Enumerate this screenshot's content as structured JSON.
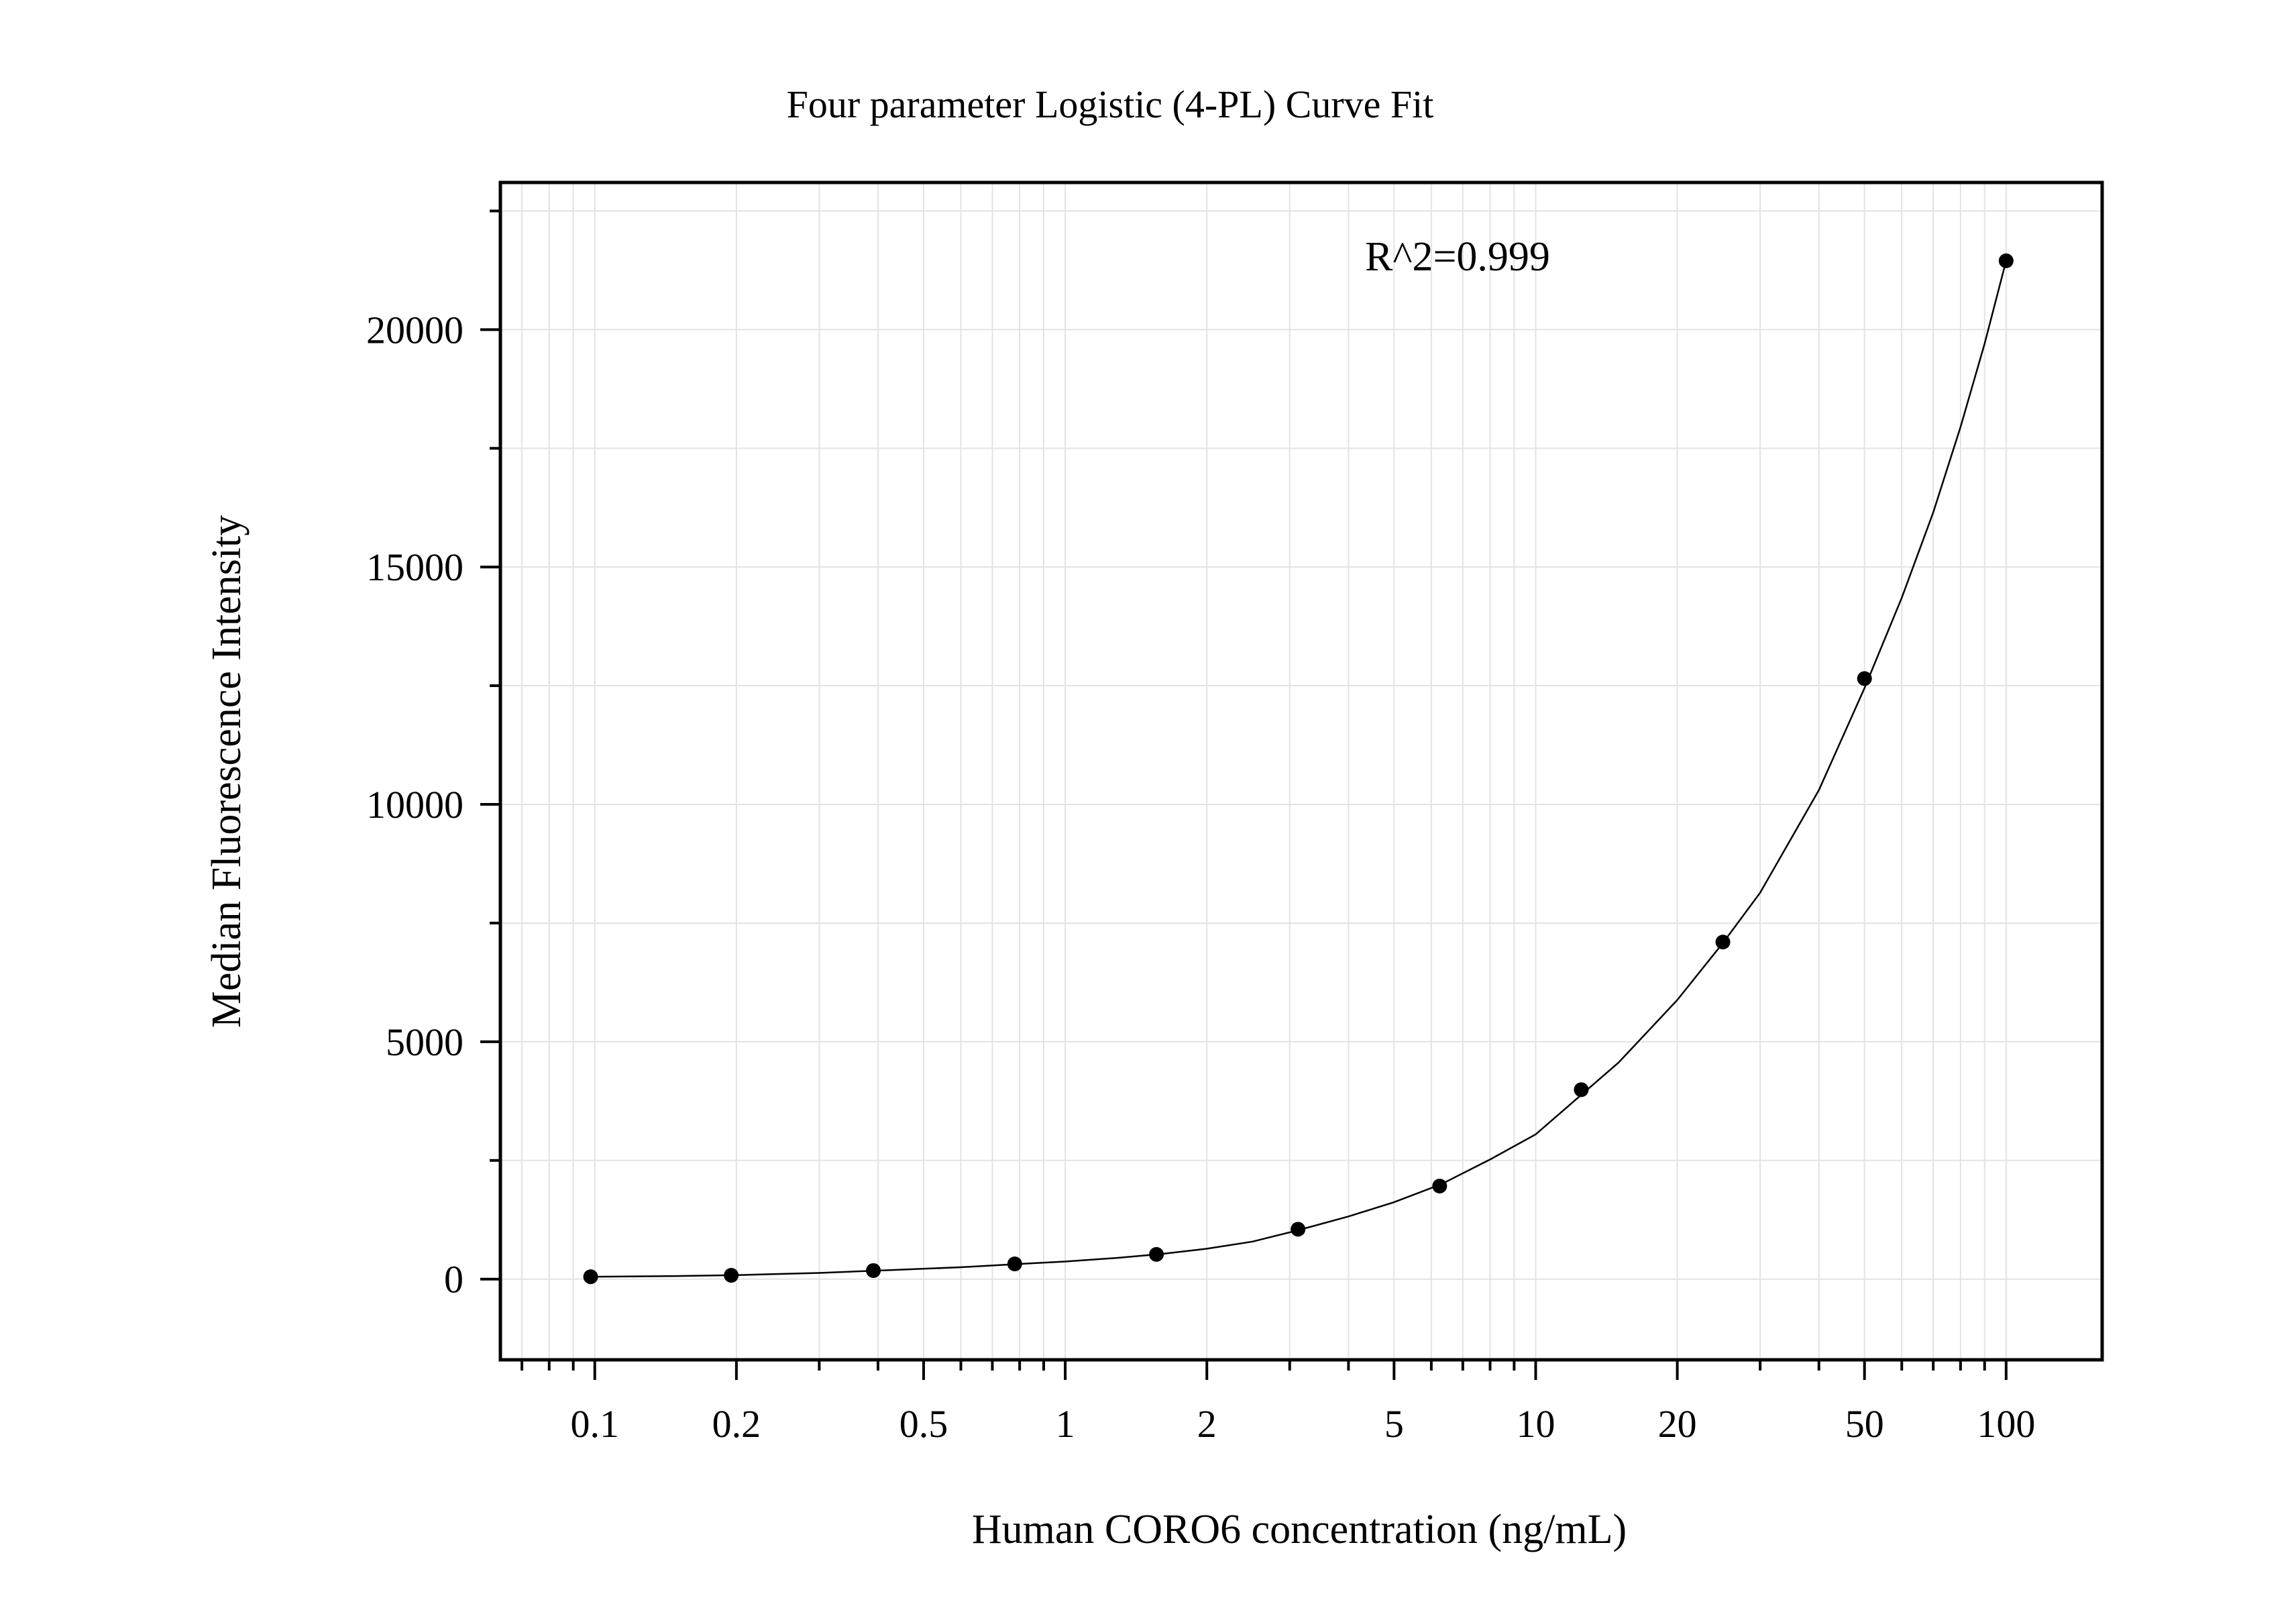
{
  "chart_data": {
    "type": "scatter",
    "title": "Four parameter Logistic (4-PL) Curve Fit",
    "xlabel": "Human CORO6 concentration (ng/mL)",
    "ylabel": "Median Fluorescence Intensity",
    "x_scale": "log",
    "xlim": [
      0.063,
      160
    ],
    "ylim": [
      -1700,
      23100
    ],
    "x_ticks": [
      0.1,
      0.2,
      0.5,
      1,
      2,
      5,
      10,
      20,
      50,
      100
    ],
    "x_tick_labels": [
      "0.1",
      "0.2",
      "0.5",
      "1",
      "2",
      "5",
      "10",
      "20",
      "50",
      "100"
    ],
    "y_ticks": [
      0,
      5000,
      10000,
      15000,
      20000
    ],
    "y_tick_labels": [
      "0",
      "5000",
      "10000",
      "15000",
      "20000"
    ],
    "grid": true,
    "annotation": "R^2=0.999",
    "series": [
      {
        "x": [
          0.098,
          0.195,
          0.391,
          0.781,
          1.5625,
          3.125,
          6.25,
          12.5,
          25,
          50,
          100
        ],
        "y": [
          50,
          80,
          180,
          320,
          520,
          1050,
          1960,
          3990,
          7100,
          12650,
          21450
        ]
      }
    ],
    "fit_curve": {
      "type": "4PL",
      "x": [
        0.098,
        0.15,
        0.2,
        0.3,
        0.4,
        0.6,
        0.8,
        1.0,
        1.3,
        1.6,
        2.0,
        2.5,
        3.1,
        4.0,
        5.0,
        6.3,
        8.0,
        10.0,
        12.5,
        15.0,
        20.0,
        25.0,
        30.0,
        40.0,
        50.0,
        60.0,
        70.0,
        80.0,
        90.0,
        100.0
      ],
      "y": [
        50,
        65,
        85,
        130,
        180,
        250,
        320,
        370,
        450,
        530,
        640,
        790,
        1020,
        1320,
        1620,
        2000,
        2520,
        3050,
        3880,
        4560,
        5880,
        7080,
        8140,
        10300,
        12450,
        14350,
        16150,
        17950,
        19700,
        21450
      ]
    },
    "colors": {
      "points": "#000000",
      "curve": "#000000",
      "grid": "#e3e3e3",
      "frame": "#000000"
    }
  }
}
